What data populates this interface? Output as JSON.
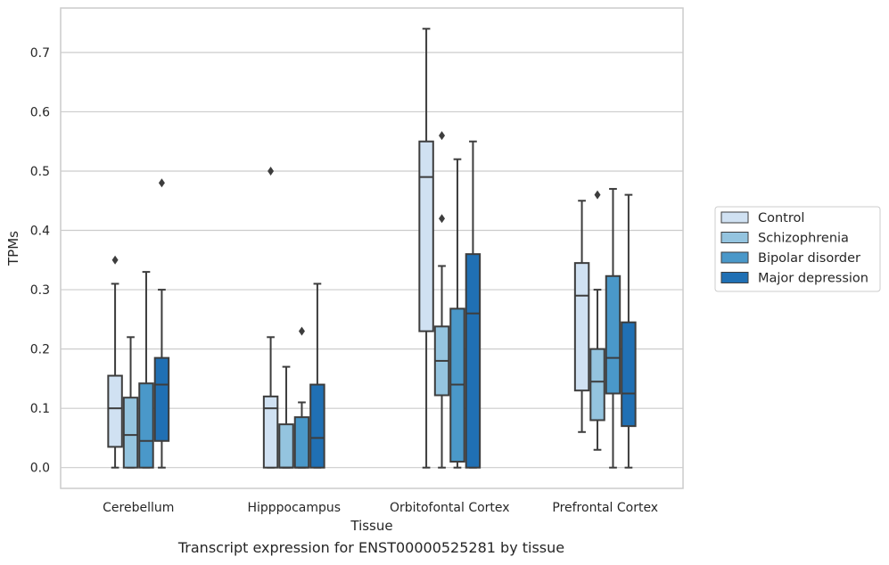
{
  "chart_data": {
    "type": "boxplot",
    "xlabel": "Tissue",
    "ylabel": "TPMs",
    "ylim": [
      -0.035,
      0.775
    ],
    "yticks": [
      0.0,
      0.1,
      0.2,
      0.3,
      0.4,
      0.5,
      0.6,
      0.7
    ],
    "ytick_labels": [
      "0.0",
      "0.1",
      "0.2",
      "0.3",
      "0.4",
      "0.5",
      "0.6",
      "0.7"
    ],
    "grid": "horizontal",
    "legend_position": "right",
    "categories": [
      "Cerebellum",
      "Hipppocampus",
      "Orbitofontal Cortex",
      "Prefrontal Cortex"
    ],
    "series": [
      {
        "name": "Control",
        "color": "#d0e1f2",
        "boxes": [
          {
            "whislo": 0.0,
            "q1": 0.035,
            "med": 0.1,
            "q3": 0.155,
            "whishi": 0.31,
            "fliers": [
              0.35
            ]
          },
          {
            "whislo": 0.0,
            "q1": 0.0,
            "med": 0.1,
            "q3": 0.12,
            "whishi": 0.22,
            "fliers": [
              0.5
            ]
          },
          {
            "whislo": 0.0,
            "q1": 0.23,
            "med": 0.49,
            "q3": 0.55,
            "whishi": 0.74,
            "fliers": []
          },
          {
            "whislo": 0.06,
            "q1": 0.13,
            "med": 0.29,
            "q3": 0.345,
            "whishi": 0.45,
            "fliers": []
          }
        ]
      },
      {
        "name": "Schizophrenia",
        "color": "#94c4df",
        "boxes": [
          {
            "whislo": 0.0,
            "q1": 0.0,
            "med": 0.055,
            "q3": 0.118,
            "whishi": 0.22,
            "fliers": []
          },
          {
            "whislo": 0.0,
            "q1": 0.0,
            "med": 0.0,
            "q3": 0.073,
            "whishi": 0.17,
            "fliers": []
          },
          {
            "whislo": 0.0,
            "q1": 0.122,
            "med": 0.18,
            "q3": 0.238,
            "whishi": 0.34,
            "fliers": [
              0.42,
              0.56
            ]
          },
          {
            "whislo": 0.03,
            "q1": 0.08,
            "med": 0.145,
            "q3": 0.2,
            "whishi": 0.3,
            "fliers": [
              0.46
            ]
          }
        ]
      },
      {
        "name": "Bipolar disorder",
        "color": "#4a98c9",
        "boxes": [
          {
            "whislo": 0.0,
            "q1": 0.0,
            "med": 0.045,
            "q3": 0.142,
            "whishi": 0.33,
            "fliers": []
          },
          {
            "whislo": 0.0,
            "q1": 0.0,
            "med": 0.0,
            "q3": 0.085,
            "whishi": 0.11,
            "fliers": [
              0.23
            ]
          },
          {
            "whislo": 0.0,
            "q1": 0.01,
            "med": 0.14,
            "q3": 0.268,
            "whishi": 0.52,
            "fliers": []
          },
          {
            "whislo": 0.0,
            "q1": 0.125,
            "med": 0.185,
            "q3": 0.323,
            "whishi": 0.47,
            "fliers": []
          }
        ]
      },
      {
        "name": "Major depression",
        "color": "#2070b4",
        "boxes": [
          {
            "whislo": 0.0,
            "q1": 0.045,
            "med": 0.14,
            "q3": 0.185,
            "whishi": 0.3,
            "fliers": [
              0.48
            ]
          },
          {
            "whislo": 0.0,
            "q1": 0.0,
            "med": 0.05,
            "q3": 0.14,
            "whishi": 0.31,
            "fliers": []
          },
          {
            "whislo": 0.0,
            "q1": 0.0,
            "med": 0.26,
            "q3": 0.36,
            "whishi": 0.55,
            "fliers": []
          },
          {
            "whislo": 0.0,
            "q1": 0.07,
            "med": 0.125,
            "q3": 0.245,
            "whishi": 0.46,
            "fliers": []
          }
        ]
      }
    ]
  },
  "caption": "Transcript expression for ENST00000525281 by tissue",
  "colors": {
    "box_edge": "#3d3d3d",
    "grid": "#cccccc",
    "frame": "#cccccc",
    "text": "#262626"
  }
}
